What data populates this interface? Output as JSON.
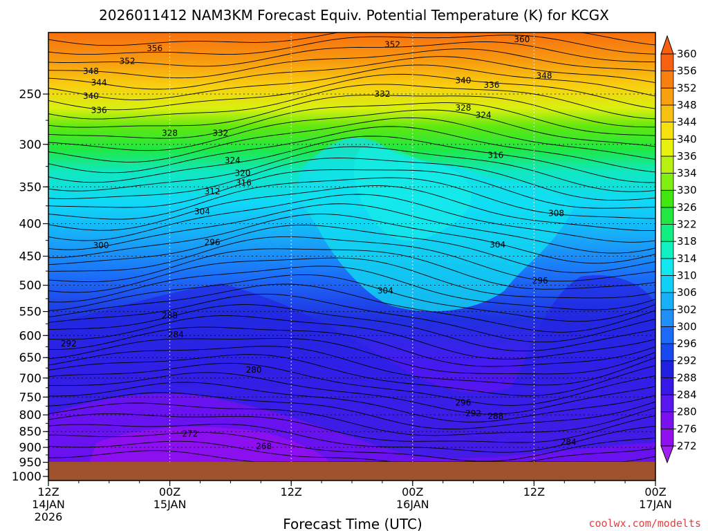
{
  "chart_data": {
    "type": "heatmap",
    "title": "2026011412 NAM3KM Forecast Equiv. Potential Temperature (K) for KCGX",
    "xlabel": "Forecast Time (UTC)",
    "ylabel": "",
    "credit": "coolwx.com/modelts",
    "credit_color": "#e04040",
    "x_ticks": [
      {
        "hour": 0,
        "l1": "12Z",
        "l2": "14JAN",
        "l3": "2026"
      },
      {
        "hour": 12,
        "l1": "00Z",
        "l2": "15JAN",
        "l3": ""
      },
      {
        "hour": 24,
        "l1": "12Z",
        "l2": "",
        "l3": ""
      },
      {
        "hour": 36,
        "l1": "00Z",
        "l2": "16JAN",
        "l3": ""
      },
      {
        "hour": 48,
        "l1": "12Z",
        "l2": "",
        "l3": ""
      },
      {
        "hour": 60,
        "l1": "00Z",
        "l2": "17JAN",
        "l3": ""
      }
    ],
    "xlim": [
      0,
      60
    ],
    "y_ticks": [
      "250",
      "300",
      "350",
      "400",
      "450",
      "500",
      "550",
      "600",
      "650",
      "700",
      "750",
      "800",
      "850",
      "900",
      "950",
      "1000"
    ],
    "ylim_hpa": [
      200,
      1000
    ],
    "ground_color": "#a0522d",
    "colorbar": {
      "levels": [
        272,
        276,
        280,
        284,
        288,
        292,
        296,
        300,
        302,
        306,
        310,
        314,
        318,
        322,
        326,
        330,
        334,
        336,
        340,
        344,
        348,
        352,
        356,
        360
      ],
      "colors": [
        "#9010f0",
        "#7a10f0",
        "#5a18f0",
        "#3818e8",
        "#2020e0",
        "#1848f0",
        "#1c6af8",
        "#2090f8",
        "#18b0f8",
        "#10d0f8",
        "#10e8f0",
        "#10f0c0",
        "#10f080",
        "#20e840",
        "#40e810",
        "#80f010",
        "#b8f010",
        "#e8f010",
        "#f8e010",
        "#f8c010",
        "#f8a010",
        "#f88010",
        "#f86010"
      ]
    },
    "contour_labels": [
      {
        "text": "356",
        "hour": 10.5,
        "p": 212
      },
      {
        "text": "352",
        "hour": 7.8,
        "p": 222
      },
      {
        "text": "348",
        "hour": 4.2,
        "p": 230
      },
      {
        "text": "344",
        "hour": 5.0,
        "p": 240
      },
      {
        "text": "340",
        "hour": 4.2,
        "p": 252
      },
      {
        "text": "336",
        "hour": 5.0,
        "p": 265
      },
      {
        "text": "328",
        "hour": 12.0,
        "p": 288
      },
      {
        "text": "332",
        "hour": 17.0,
        "p": 288
      },
      {
        "text": "324",
        "hour": 18.2,
        "p": 318
      },
      {
        "text": "320",
        "hour": 19.2,
        "p": 333
      },
      {
        "text": "316",
        "hour": 19.3,
        "p": 345
      },
      {
        "text": "312",
        "hour": 16.2,
        "p": 356
      },
      {
        "text": "304",
        "hour": 15.2,
        "p": 383
      },
      {
        "text": "300",
        "hour": 5.2,
        "p": 433
      },
      {
        "text": "296",
        "hour": 16.2,
        "p": 428
      },
      {
        "text": "288",
        "hour": 12.0,
        "p": 558
      },
      {
        "text": "284",
        "hour": 12.6,
        "p": 598
      },
      {
        "text": "292",
        "hour": 2.0,
        "p": 618
      },
      {
        "text": "280",
        "hour": 20.3,
        "p": 680
      },
      {
        "text": "272",
        "hour": 14.0,
        "p": 857
      },
      {
        "text": "268",
        "hour": 21.3,
        "p": 897
      },
      {
        "text": "352",
        "hour": 34.0,
        "p": 209
      },
      {
        "text": "360",
        "hour": 46.8,
        "p": 205
      },
      {
        "text": "340",
        "hour": 41.0,
        "p": 238
      },
      {
        "text": "336",
        "hour": 43.8,
        "p": 242
      },
      {
        "text": "348",
        "hour": 49.0,
        "p": 234
      },
      {
        "text": "332",
        "hour": 33.0,
        "p": 250
      },
      {
        "text": "328",
        "hour": 41.0,
        "p": 263
      },
      {
        "text": "324",
        "hour": 43.0,
        "p": 270
      },
      {
        "text": "316",
        "hour": 44.2,
        "p": 312
      },
      {
        "text": "308",
        "hour": 50.2,
        "p": 385
      },
      {
        "text": "304",
        "hour": 44.4,
        "p": 432
      },
      {
        "text": "304",
        "hour": 33.3,
        "p": 510
      },
      {
        "text": "296",
        "hour": 48.6,
        "p": 492
      },
      {
        "text": "296",
        "hour": 41.0,
        "p": 766
      },
      {
        "text": "292",
        "hour": 42.0,
        "p": 796
      },
      {
        "text": "288",
        "hour": 44.2,
        "p": 804
      },
      {
        "text": "284",
        "hour": 51.4,
        "p": 883
      }
    ]
  }
}
